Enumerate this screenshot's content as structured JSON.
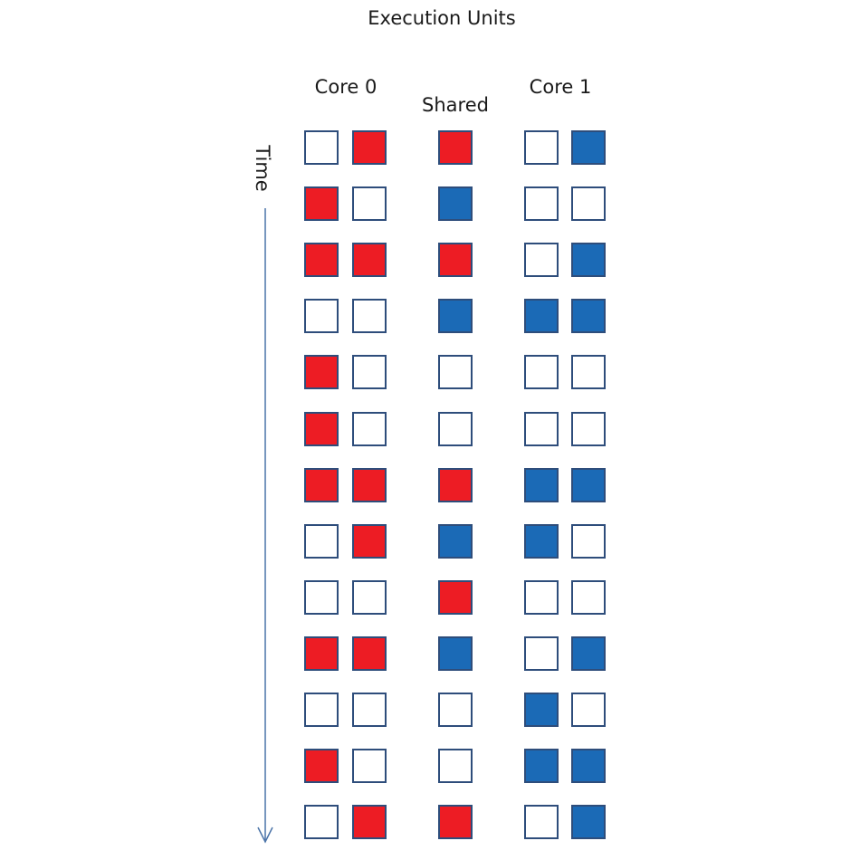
{
  "diagram": {
    "title": "Execution Units",
    "time_label": "Time",
    "columns": [
      {
        "label": "Core 0"
      },
      {
        "label": "Shared"
      },
      {
        "label": "Core 1"
      }
    ],
    "colors": {
      "red": "#ed1c24",
      "blue": "#1b6ab6",
      "empty": "#ffffff",
      "border": "#2e4d7b",
      "arrow": "#4a73a8"
    },
    "rows": [
      [
        "empty",
        "red",
        "red",
        "empty",
        "blue"
      ],
      [
        "red",
        "empty",
        "blue",
        "empty",
        "empty"
      ],
      [
        "red",
        "red",
        "red",
        "empty",
        "blue"
      ],
      [
        "empty",
        "empty",
        "blue",
        "blue",
        "blue"
      ],
      [
        "red",
        "empty",
        "empty",
        "empty",
        "empty"
      ],
      [
        "red",
        "empty",
        "empty",
        "empty",
        "empty"
      ],
      [
        "red",
        "red",
        "red",
        "blue",
        "blue"
      ],
      [
        "empty",
        "red",
        "blue",
        "blue",
        "empty"
      ],
      [
        "empty",
        "empty",
        "red",
        "empty",
        "empty"
      ],
      [
        "red",
        "red",
        "blue",
        "empty",
        "blue"
      ],
      [
        "empty",
        "empty",
        "empty",
        "blue",
        "empty"
      ],
      [
        "red",
        "empty",
        "empty",
        "blue",
        "blue"
      ],
      [
        "empty",
        "red",
        "red",
        "empty",
        "blue"
      ]
    ]
  }
}
